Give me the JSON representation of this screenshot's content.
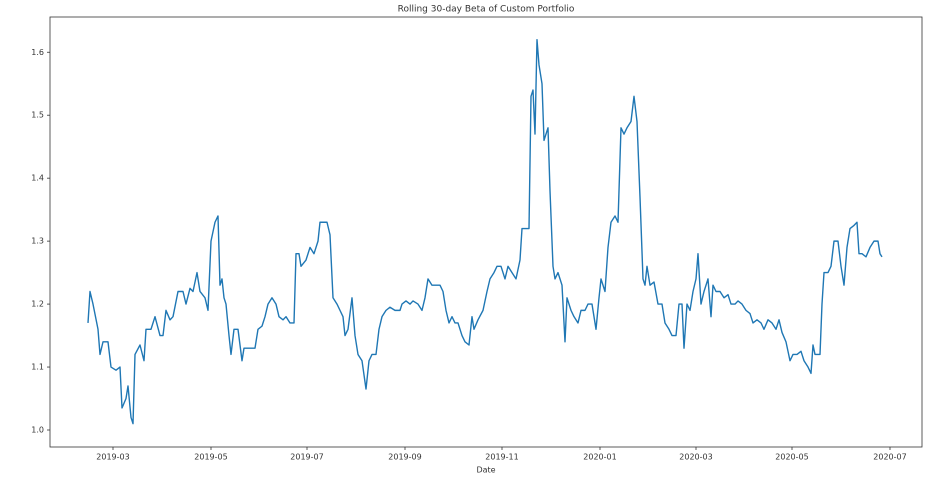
{
  "chart_data": {
    "type": "line",
    "title": "Rolling 30-day Beta of Custom Portfolio",
    "xlabel": "Date",
    "color": "#1f77b4",
    "grid": false,
    "xlim": [
      50,
      922
    ],
    "xticks": [
      {
        "value": 113,
        "label": "2019-03"
      },
      {
        "value": 211,
        "label": "2019-05"
      },
      {
        "value": 307,
        "label": "2019-07"
      },
      {
        "value": 405,
        "label": "2019-09"
      },
      {
        "value": 502,
        "label": "2019-11"
      },
      {
        "value": 600,
        "label": "2020-01"
      },
      {
        "value": 696,
        "label": "2020-03"
      },
      {
        "value": 792,
        "label": "2020-05"
      },
      {
        "value": 890,
        "label": "2020-07"
      }
    ],
    "ylim": [
      0.973,
      1.656
    ],
    "yticks": [
      {
        "value": 1,
        "label": "1.0"
      },
      1.1,
      1.2,
      1.3,
      1.4,
      1.5,
      1.6
    ],
    "x": [
      88,
      90,
      93,
      98,
      100,
      103,
      108,
      111,
      116,
      120,
      122,
      126,
      128,
      131,
      133,
      135,
      140,
      144,
      146,
      151,
      155,
      160,
      163,
      166,
      170,
      173,
      178,
      183,
      186,
      190,
      193,
      197,
      200,
      205,
      208,
      211,
      215,
      218,
      220,
      222,
      224,
      226,
      229,
      231,
      234,
      238,
      242,
      244,
      250,
      255,
      258,
      262,
      265,
      268,
      272,
      276,
      279,
      283,
      286,
      290,
      294,
      296,
      299,
      301,
      306,
      310,
      314,
      318,
      320,
      323,
      327,
      330,
      333,
      337,
      340,
      343,
      345,
      348,
      352,
      355,
      358,
      362,
      366,
      369,
      372,
      376,
      379,
      382,
      386,
      390,
      395,
      400,
      402,
      406,
      410,
      413,
      418,
      422,
      425,
      428,
      432,
      437,
      440,
      443,
      446,
      449,
      452,
      455,
      458,
      462,
      465,
      469,
      472,
      474,
      478,
      483,
      487,
      490,
      494,
      497,
      501,
      505,
      508,
      512,
      516,
      520,
      522,
      526,
      529,
      531,
      533,
      535,
      537,
      539,
      542,
      544,
      546,
      548,
      550,
      553,
      555,
      558,
      562,
      565,
      567,
      571,
      574,
      578,
      581,
      585,
      588,
      592,
      596,
      599,
      601,
      605,
      608,
      611,
      615,
      618,
      621,
      624,
      627,
      631,
      634,
      637,
      640,
      643,
      645,
      647,
      650,
      654,
      658,
      662,
      665,
      669,
      672,
      676,
      679,
      682,
      684,
      687,
      690,
      693,
      696,
      698,
      701,
      704,
      708,
      711,
      713,
      716,
      720,
      724,
      728,
      731,
      735,
      738,
      742,
      746,
      750,
      753,
      757,
      761,
      764,
      768,
      772,
      776,
      779,
      782,
      786,
      790,
      793,
      797,
      801,
      804,
      808,
      811,
      813,
      815,
      820,
      822,
      824,
      828,
      831,
      834,
      838,
      841,
      844,
      847,
      850,
      854,
      857,
      859,
      862,
      866,
      870,
      874,
      878,
      880,
      882
    ],
    "values": [
      1.17,
      1.22,
      1.2,
      1.16,
      1.12,
      1.14,
      1.14,
      1.1,
      1.095,
      1.1,
      1.035,
      1.05,
      1.07,
      1.02,
      1.01,
      1.12,
      1.135,
      1.11,
      1.16,
      1.16,
      1.18,
      1.15,
      1.15,
      1.19,
      1.175,
      1.18,
      1.22,
      1.22,
      1.2,
      1.225,
      1.22,
      1.25,
      1.22,
      1.21,
      1.19,
      1.3,
      1.33,
      1.34,
      1.23,
      1.24,
      1.21,
      1.2,
      1.15,
      1.12,
      1.16,
      1.16,
      1.11,
      1.13,
      1.13,
      1.13,
      1.16,
      1.165,
      1.18,
      1.2,
      1.21,
      1.2,
      1.18,
      1.175,
      1.18,
      1.17,
      1.17,
      1.28,
      1.28,
      1.26,
      1.27,
      1.29,
      1.28,
      1.3,
      1.33,
      1.33,
      1.33,
      1.31,
      1.21,
      1.2,
      1.19,
      1.18,
      1.15,
      1.16,
      1.21,
      1.15,
      1.12,
      1.11,
      1.065,
      1.11,
      1.12,
      1.12,
      1.16,
      1.18,
      1.19,
      1.195,
      1.19,
      1.19,
      1.2,
      1.205,
      1.2,
      1.205,
      1.2,
      1.19,
      1.21,
      1.24,
      1.23,
      1.23,
      1.23,
      1.22,
      1.19,
      1.17,
      1.18,
      1.17,
      1.17,
      1.15,
      1.14,
      1.135,
      1.18,
      1.16,
      1.175,
      1.19,
      1.22,
      1.24,
      1.25,
      1.26,
      1.26,
      1.24,
      1.26,
      1.25,
      1.24,
      1.27,
      1.32,
      1.32,
      1.32,
      1.53,
      1.54,
      1.47,
      1.62,
      1.58,
      1.55,
      1.46,
      1.47,
      1.48,
      1.38,
      1.26,
      1.24,
      1.25,
      1.23,
      1.14,
      1.21,
      1.19,
      1.18,
      1.17,
      1.19,
      1.19,
      1.2,
      1.2,
      1.16,
      1.21,
      1.24,
      1.22,
      1.29,
      1.33,
      1.34,
      1.33,
      1.48,
      1.47,
      1.48,
      1.49,
      1.53,
      1.49,
      1.37,
      1.24,
      1.23,
      1.26,
      1.23,
      1.235,
      1.2,
      1.2,
      1.17,
      1.16,
      1.15,
      1.15,
      1.2,
      1.2,
      1.13,
      1.2,
      1.19,
      1.22,
      1.24,
      1.28,
      1.2,
      1.22,
      1.24,
      1.18,
      1.23,
      1.22,
      1.22,
      1.21,
      1.215,
      1.2,
      1.2,
      1.205,
      1.2,
      1.19,
      1.185,
      1.17,
      1.175,
      1.17,
      1.16,
      1.175,
      1.17,
      1.16,
      1.175,
      1.155,
      1.14,
      1.11,
      1.12,
      1.12,
      1.125,
      1.11,
      1.1,
      1.09,
      1.135,
      1.12,
      1.12,
      1.2,
      1.25,
      1.25,
      1.26,
      1.3,
      1.3,
      1.26,
      1.23,
      1.29,
      1.32,
      1.325,
      1.33,
      1.28,
      1.28,
      1.275,
      1.29,
      1.3,
      1.3,
      1.28,
      1.275
    ]
  }
}
